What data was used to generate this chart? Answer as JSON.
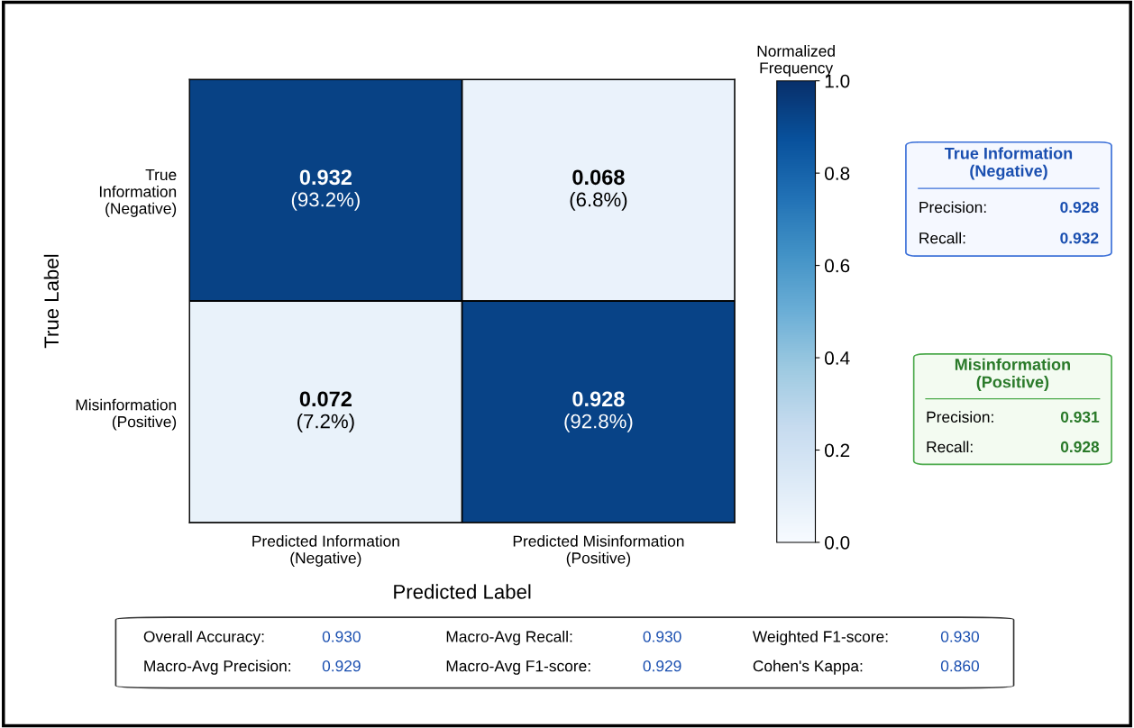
{
  "chart_data": [
    {
      "type": "heatmap",
      "xlabel": "Predicted Label",
      "ylabel": "True Label",
      "clabel": "Normalized\nFrequency",
      "categories": [
        "Predicted Information\n(Negative)",
        "Predicted Misinformation\n(Positive)"
      ],
      "y_categories": [
        "True\nInformation\n(Negative)",
        "Misinformation\n(Positive)"
      ],
      "cells": [
        [
          0.932,
          0.068
        ],
        [
          0.072,
          0.928
        ]
      ],
      "cell_labels": [
        [
          "0.932\n(93.2%)",
          "0.068\n(6.8%)"
        ],
        [
          "0.072\n(7.2%)",
          "0.928\n(92.8%)"
        ]
      ],
      "clim": [
        0,
        1
      ],
      "cticks": [
        {
          "value": 0,
          "label": "0.0"
        },
        {
          "value": 0.2,
          "label": "0.2"
        },
        {
          "value": 0.4,
          "label": "0.4"
        },
        {
          "value": 0.6,
          "label": "0.6"
        },
        {
          "value": 0.8,
          "label": "0.8"
        },
        {
          "value": 1,
          "label": "1.0"
        }
      ]
    },
    {
      "type": "other",
      "title": "True Information\n(Negative)",
      "annotations": [
        "Precision:",
        "0.928",
        "Recall:",
        "0.932"
      ]
    },
    {
      "type": "other",
      "title": "Misinformation\n(Positive)",
      "annotations": [
        "Precision:",
        "0.931",
        "Recall:",
        "0.928"
      ]
    },
    {
      "type": "other",
      "annotations": [
        "Overall Accuracy:",
        "0.930",
        "Macro-Avg Recall:",
        "0.930",
        "Weighted F1-score:",
        "0.930",
        "Macro-Avg Precision:",
        "0.929",
        "Macro-Avg F1-score:",
        "0.929",
        "Cohen's Kappa:",
        "0.860"
      ]
    }
  ]
}
